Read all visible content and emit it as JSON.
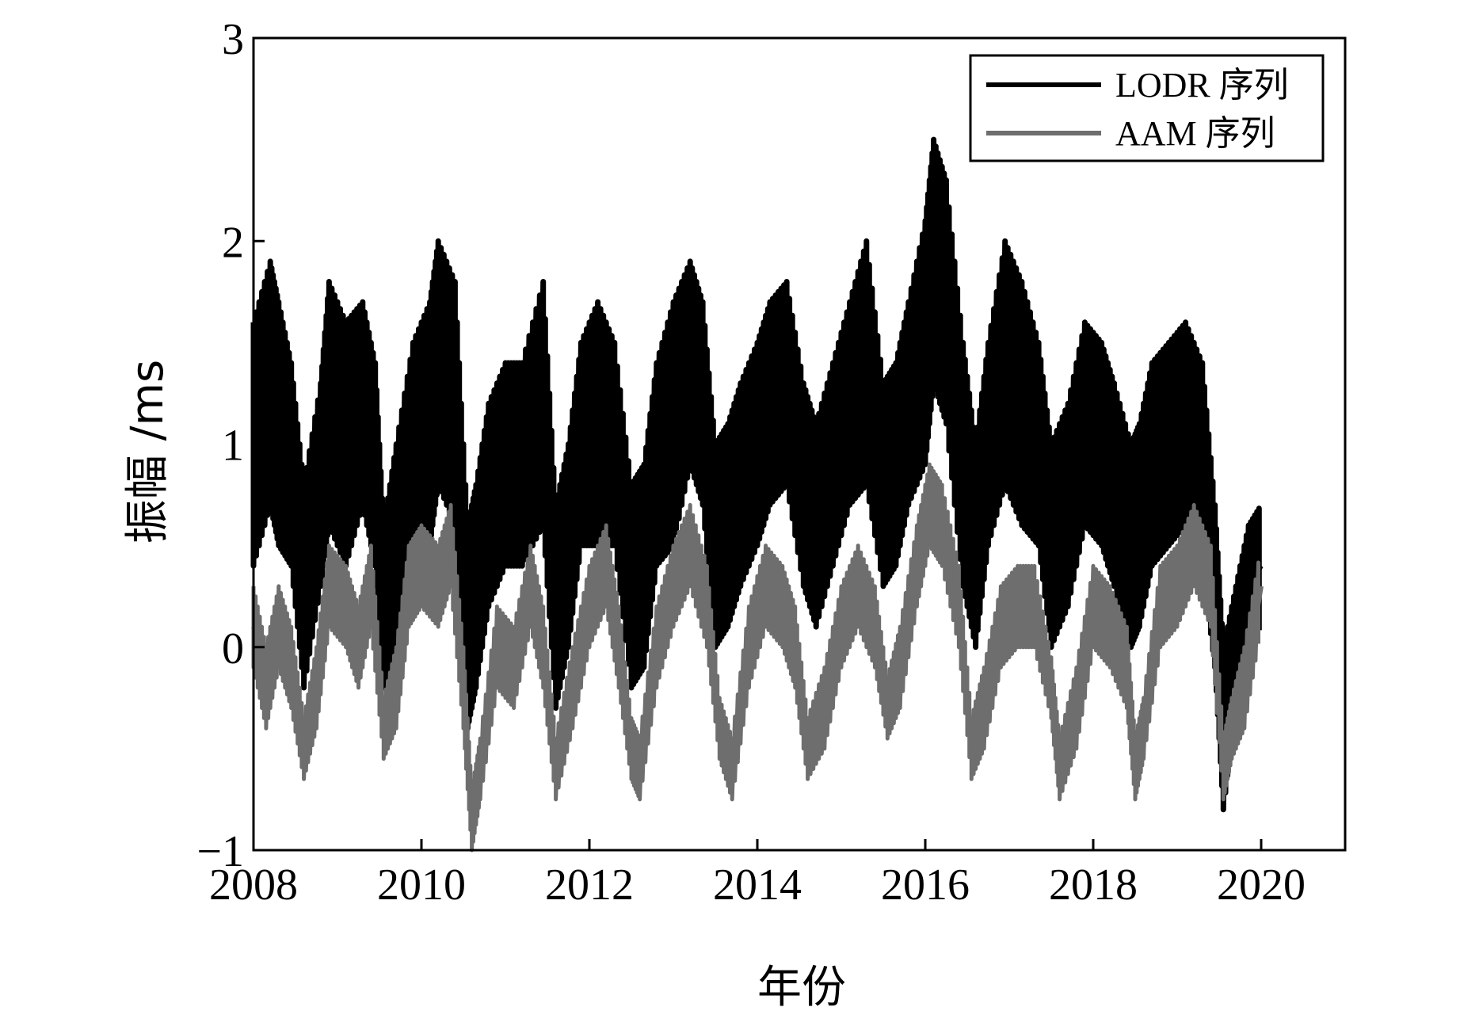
{
  "chart_data": {
    "type": "line",
    "title": "",
    "xlabel": "年份",
    "ylabel": "振幅 /ms",
    "xlim": [
      2008,
      2021
    ],
    "ylim": [
      -1,
      3
    ],
    "x_ticks": [
      "2008",
      "2010",
      "2012",
      "2014",
      "2016",
      "2018",
      "2020"
    ],
    "y_ticks": [
      "−1",
      "0",
      "1",
      "2",
      "3"
    ],
    "grid": false,
    "legend_position": "top-right",
    "series": [
      {
        "name": "LODR 序列",
        "color": "#000000",
        "x": [
          2008.0,
          2008.2,
          2008.3,
          2008.45,
          2008.6,
          2008.8,
          2008.9,
          2009.1,
          2009.3,
          2009.45,
          2009.55,
          2009.7,
          2009.9,
          2010.1,
          2010.2,
          2010.4,
          2010.55,
          2010.65,
          2010.8,
          2011.0,
          2011.2,
          2011.45,
          2011.6,
          2011.75,
          2011.9,
          2012.1,
          2012.3,
          2012.5,
          2012.65,
          2012.8,
          2013.0,
          2013.2,
          2013.35,
          2013.5,
          2013.65,
          2013.8,
          2014.0,
          2014.15,
          2014.35,
          2014.55,
          2014.7,
          2014.9,
          2015.1,
          2015.3,
          2015.5,
          2015.65,
          2015.8,
          2016.0,
          2016.1,
          2016.25,
          2016.45,
          2016.6,
          2016.75,
          2016.95,
          2017.15,
          2017.35,
          2017.5,
          2017.7,
          2017.9,
          2018.1,
          2018.25,
          2018.45,
          2018.55,
          2018.7,
          2018.9,
          2019.1,
          2019.3,
          2019.45,
          2019.55,
          2019.7,
          2019.85,
          2020.0
        ],
        "values": [
          1.0,
          1.3,
          1.1,
          0.9,
          0.3,
          0.8,
          1.2,
          1.0,
          1.2,
          0.9,
          0.2,
          0.5,
          0.9,
          1.1,
          1.4,
          1.2,
          0.1,
          0.3,
          0.7,
          0.9,
          0.9,
          1.2,
          0.2,
          0.5,
          1.0,
          1.1,
          1.0,
          0.3,
          0.4,
          0.9,
          1.1,
          1.4,
          1.2,
          0.5,
          0.6,
          0.8,
          1.0,
          1.2,
          1.3,
          0.8,
          0.6,
          0.9,
          1.2,
          1.4,
          0.8,
          0.9,
          1.2,
          1.5,
          1.9,
          1.7,
          0.9,
          0.5,
          1.0,
          1.4,
          1.2,
          1.0,
          0.5,
          0.7,
          1.1,
          1.0,
          0.8,
          0.5,
          0.6,
          0.9,
          1.0,
          1.1,
          0.9,
          0.3,
          -0.4,
          0.0,
          0.3,
          0.4
        ],
        "band": [
          0.6,
          0.6,
          0.6,
          0.5,
          0.5,
          0.5,
          0.6,
          0.6,
          0.5,
          0.5,
          0.4,
          0.5,
          0.6,
          0.6,
          0.6,
          0.6,
          0.5,
          0.5,
          0.5,
          0.5,
          0.5,
          0.6,
          0.5,
          0.5,
          0.5,
          0.6,
          0.5,
          0.5,
          0.5,
          0.5,
          0.6,
          0.5,
          0.5,
          0.5,
          0.5,
          0.5,
          0.5,
          0.5,
          0.5,
          0.5,
          0.5,
          0.5,
          0.5,
          0.6,
          0.5,
          0.5,
          0.5,
          0.6,
          0.6,
          0.6,
          0.6,
          0.5,
          0.5,
          0.6,
          0.6,
          0.5,
          0.5,
          0.5,
          0.5,
          0.5,
          0.5,
          0.5,
          0.5,
          0.5,
          0.5,
          0.5,
          0.5,
          0.4,
          0.4,
          0.3,
          0.3,
          0.3
        ]
      },
      {
        "name": "AAM 序列",
        "color": "#6e6e6e",
        "x": [
          2008.0,
          2008.15,
          2008.3,
          2008.45,
          2008.6,
          2008.75,
          2008.9,
          2009.1,
          2009.25,
          2009.4,
          2009.55,
          2009.7,
          2009.85,
          2010.0,
          2010.2,
          2010.35,
          2010.5,
          2010.6,
          2010.7,
          2010.9,
          2011.1,
          2011.3,
          2011.45,
          2011.6,
          2011.8,
          2012.0,
          2012.2,
          2012.35,
          2012.5,
          2012.6,
          2012.8,
          2013.0,
          2013.2,
          2013.4,
          2013.55,
          2013.7,
          2013.9,
          2014.1,
          2014.3,
          2014.45,
          2014.6,
          2014.8,
          2015.0,
          2015.2,
          2015.4,
          2015.55,
          2015.7,
          2015.9,
          2016.05,
          2016.2,
          2016.4,
          2016.55,
          2016.7,
          2016.9,
          2017.1,
          2017.3,
          2017.5,
          2017.6,
          2017.8,
          2018.0,
          2018.2,
          2018.4,
          2018.5,
          2018.6,
          2018.8,
          2019.0,
          2019.2,
          2019.4,
          2019.55,
          2019.65,
          2019.8,
          2020.0
        ],
        "values": [
          0.1,
          -0.2,
          0.1,
          -0.1,
          -0.5,
          -0.2,
          0.3,
          0.2,
          0.0,
          0.3,
          -0.4,
          -0.2,
          0.3,
          0.4,
          0.3,
          0.5,
          -0.2,
          -0.85,
          -0.6,
          0.0,
          -0.1,
          0.3,
          0.0,
          -0.6,
          -0.2,
          0.2,
          0.4,
          0.0,
          -0.5,
          -0.6,
          0.0,
          0.3,
          0.5,
          0.2,
          -0.4,
          -0.6,
          0.0,
          0.3,
          0.2,
          0.0,
          -0.5,
          -0.3,
          0.1,
          0.3,
          0.1,
          -0.3,
          -0.1,
          0.4,
          0.7,
          0.6,
          0.2,
          -0.5,
          -0.3,
          0.1,
          0.2,
          0.2,
          -0.2,
          -0.6,
          -0.3,
          0.2,
          0.1,
          -0.1,
          -0.6,
          -0.4,
          0.2,
          0.3,
          0.5,
          0.3,
          -0.6,
          -0.4,
          -0.2,
          0.3
        ],
        "band": [
          0.2,
          0.2,
          0.2,
          0.2,
          0.15,
          0.2,
          0.2,
          0.2,
          0.2,
          0.2,
          0.15,
          0.2,
          0.2,
          0.2,
          0.2,
          0.2,
          0.2,
          0.15,
          0.15,
          0.2,
          0.2,
          0.2,
          0.2,
          0.15,
          0.2,
          0.2,
          0.2,
          0.2,
          0.15,
          0.15,
          0.2,
          0.2,
          0.2,
          0.2,
          0.15,
          0.15,
          0.2,
          0.2,
          0.2,
          0.2,
          0.15,
          0.2,
          0.2,
          0.2,
          0.2,
          0.15,
          0.2,
          0.2,
          0.2,
          0.2,
          0.2,
          0.15,
          0.2,
          0.2,
          0.2,
          0.2,
          0.15,
          0.15,
          0.2,
          0.2,
          0.2,
          0.2,
          0.15,
          0.15,
          0.2,
          0.2,
          0.2,
          0.2,
          0.15,
          0.15,
          0.2,
          0.2
        ]
      }
    ]
  }
}
